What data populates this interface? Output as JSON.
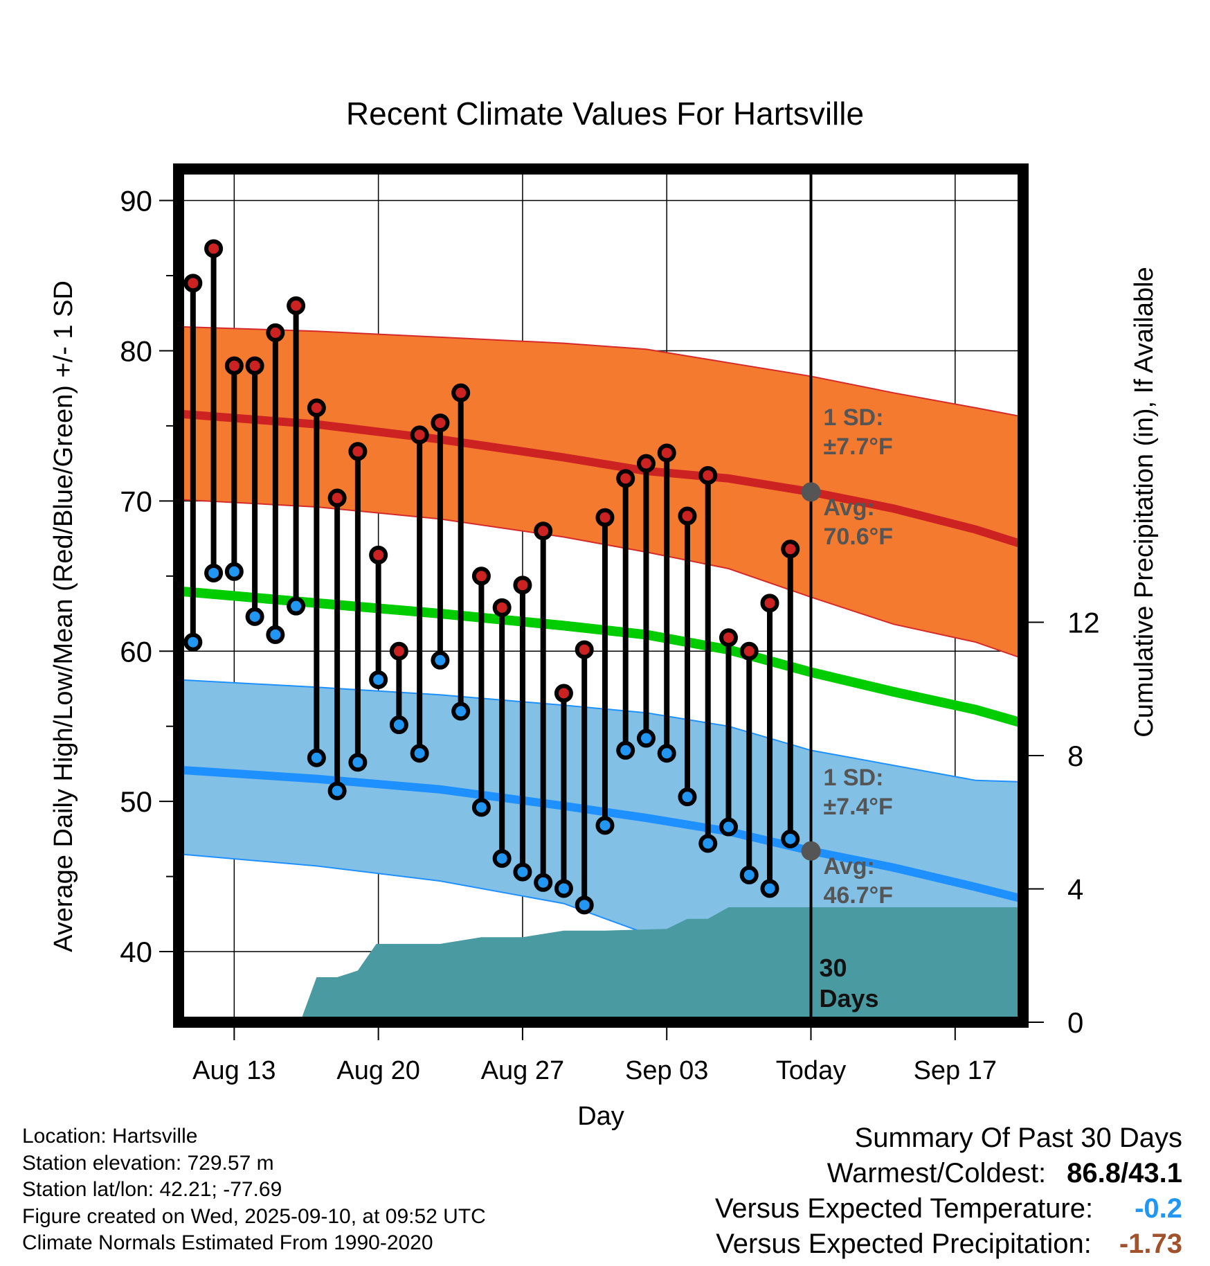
{
  "title": "Recent Climate Values For Hartsville",
  "colors": {
    "high_dot": "#cc2222",
    "low_dot": "#2196f3",
    "avg_high": "#cc2222",
    "avg_low": "#1e90ff",
    "mean": "#00cc00",
    "high_band": "#f47a30",
    "low_band": "#82c0e6",
    "precip": "#4a9aa2",
    "today_marker": "#555555",
    "note_text": "#555555",
    "versus_temp": "#2196f3",
    "versus_precip": "#a0522d"
  },
  "chart_data": {
    "type": "line",
    "title": "Recent Climate Values For Hartsville",
    "xlabel": "Day",
    "ylabel": "Average Daily High/Low/Mean (Red/Blue/Green) +/- 1 SD",
    "ylabel_right": "Cumulative Precipitation (in), If Available",
    "ylim": [
      35.3,
      92.1
    ],
    "y_ticks": [
      40,
      50,
      60,
      70,
      80,
      90
    ],
    "xlim": [
      9.3,
      50.3
    ],
    "x_ticks": [
      {
        "x": 12,
        "label": "Aug 13"
      },
      {
        "x": 19,
        "label": "Aug 20"
      },
      {
        "x": 26,
        "label": "Aug 27"
      },
      {
        "x": 33,
        "label": "Sep 03"
      },
      {
        "x": 40,
        "label": "Today"
      },
      {
        "x": 47,
        "label": "Sep 17"
      }
    ],
    "y2lim": [
      0,
      25.6
    ],
    "y2_ticks": [
      0,
      4,
      8,
      12
    ],
    "daily": {
      "x": [
        10,
        11,
        12,
        13,
        14,
        15,
        16,
        17,
        18,
        19,
        20,
        21,
        22,
        23,
        24,
        25,
        26,
        27,
        28,
        29,
        30,
        31,
        32,
        33,
        34,
        35,
        36,
        37,
        38,
        39
      ],
      "highs": [
        84.5,
        86.8,
        79.0,
        79.0,
        81.2,
        83.0,
        76.2,
        70.2,
        73.3,
        66.4,
        60.0,
        74.4,
        75.2,
        77.2,
        65.0,
        62.9,
        64.4,
        68.0,
        57.2,
        60.1,
        68.9,
        71.5,
        72.5,
        73.2,
        69.0,
        71.7,
        60.9,
        60.0,
        63.2,
        66.8
      ],
      "lows": [
        60.6,
        65.2,
        65.3,
        62.3,
        61.1,
        63.0,
        52.9,
        50.7,
        52.6,
        58.1,
        55.1,
        53.2,
        59.4,
        56.0,
        49.6,
        46.2,
        45.3,
        44.6,
        44.2,
        43.1,
        48.4,
        53.4,
        54.2,
        53.2,
        50.3,
        47.2,
        48.3,
        45.1,
        44.2,
        47.5
      ]
    },
    "normals": {
      "x": [
        9.3,
        16,
        22,
        28,
        32,
        36,
        40,
        44,
        48,
        50.3
      ],
      "avg_high": [
        75.8,
        75.1,
        74.1,
        72.9,
        72.0,
        71.5,
        70.6,
        69.5,
        68.1,
        67.1
      ],
      "high_upper": [
        81.6,
        81.3,
        80.9,
        80.5,
        80.1,
        79.2,
        78.3,
        77.2,
        76.2,
        75.6
      ],
      "high_lower": [
        70.1,
        69.6,
        68.8,
        67.6,
        66.6,
        65.5,
        63.6,
        61.8,
        60.6,
        59.5
      ],
      "mean": [
        64.0,
        63.2,
        62.5,
        61.7,
        61.1,
        60.1,
        58.6,
        57.3,
        56.1,
        55.2
      ],
      "avg_low": [
        52.1,
        51.5,
        50.8,
        49.7,
        48.9,
        48.0,
        46.7,
        45.6,
        44.3,
        43.5
      ],
      "low_upper": [
        58.1,
        57.6,
        57.1,
        56.4,
        55.9,
        55.0,
        53.4,
        52.4,
        51.4,
        51.3
      ],
      "low_lower": [
        46.5,
        45.7,
        44.7,
        43.2,
        41.2,
        40.0,
        39.2,
        38.4,
        37.5,
        37.0
      ]
    },
    "precip": {
      "x": [
        9.3,
        15.2,
        16.0,
        17.0,
        18.0,
        18.9,
        20.0,
        22.0,
        24.0,
        26.0,
        28.0,
        30.0,
        33.0,
        34.0,
        35.0,
        36.0,
        37.0,
        40.0,
        50.3
      ],
      "values": [
        0,
        0,
        1.35,
        1.35,
        1.55,
        2.35,
        2.35,
        2.35,
        2.55,
        2.55,
        2.75,
        2.75,
        2.8,
        3.1,
        3.1,
        3.45,
        3.45,
        3.45,
        3.45
      ]
    },
    "today": {
      "x": 40,
      "avg_high": 70.6,
      "avg_low": 46.7
    }
  },
  "annotations": {
    "high_sd_line1": "1 SD:",
    "high_sd_line2": "±7.7°F",
    "high_avg_line1": "Avg:",
    "high_avg_line2": "70.6°F",
    "low_sd_line1": "1 SD:",
    "low_sd_line2": "±7.4°F",
    "low_avg_line1": "Avg:",
    "low_avg_line2": "46.7°F",
    "days_line1": "30",
    "days_line2": "Days"
  },
  "footer": {
    "location": "Location: Hartsville",
    "elevation": "Station elevation: 729.57 m",
    "latlon": "Station lat/lon: 42.21; -77.69",
    "created": "Figure created on Wed, 2025-09-10, at 09:52 UTC",
    "normals": "Climate Normals Estimated From 1990-2020"
  },
  "summary": {
    "title": "Summary Of Past 30 Days",
    "warmest_label": "Warmest/Coldest:",
    "warmest_value": "86.8/43.1",
    "vs_temp_label": "Versus Expected Temperature:",
    "vs_temp_value": "-0.2",
    "vs_precip_label": "Versus Expected Precipitation:",
    "vs_precip_value": "-1.73"
  }
}
